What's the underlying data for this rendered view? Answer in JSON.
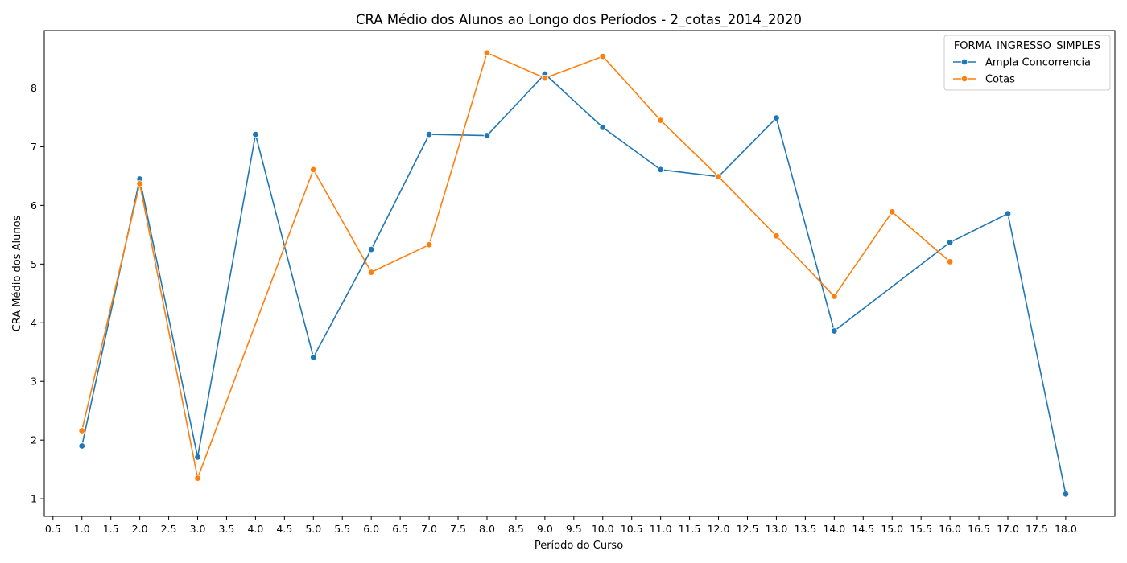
{
  "chart_data": {
    "type": "line",
    "title": "CRA Médio dos Alunos ao Longo dos Períodos - 2_cotas_2014_2020",
    "xlabel": "Período do Curso",
    "ylabel": "CRA Médio dos Alunos",
    "xlim": [
      0.35,
      18.85
    ],
    "ylim": [
      0.7,
      8.98
    ],
    "xticks": [
      0.5,
      1.0,
      1.5,
      2.0,
      2.5,
      3.0,
      3.5,
      4.0,
      4.5,
      5.0,
      5.5,
      6.0,
      6.5,
      7.0,
      7.5,
      8.0,
      8.5,
      9.0,
      9.5,
      10.0,
      10.5,
      11.0,
      11.5,
      12.0,
      12.5,
      13.0,
      13.5,
      14.0,
      14.5,
      15.0,
      15.5,
      16.0,
      16.5,
      17.0,
      17.5,
      18.0
    ],
    "xtick_labels": [
      "0.5",
      "1.0",
      "1.5",
      "2.0",
      "2.5",
      "3.0",
      "3.5",
      "4.0",
      "4.5",
      "5.0",
      "5.5",
      "6.0",
      "6.5",
      "7.0",
      "7.5",
      "8.0",
      "8.5",
      "9.0",
      "9.5",
      "10.0",
      "10.5",
      "11.0",
      "11.5",
      "12.0",
      "12.5",
      "13.0",
      "13.5",
      "14.0",
      "14.5",
      "15.0",
      "15.5",
      "16.0",
      "16.5",
      "17.0",
      "17.5",
      "18.0"
    ],
    "yticks": [
      1,
      2,
      3,
      4,
      5,
      6,
      7,
      8
    ],
    "ytick_labels": [
      "1",
      "2",
      "3",
      "4",
      "5",
      "6",
      "7",
      "8"
    ],
    "grid": false,
    "legend": {
      "title": "FORMA_INGRESSO_SIMPLES",
      "position": "top-right"
    },
    "series": [
      {
        "name": "Ampla Concorrencia",
        "color": "#1f77b4",
        "x": [
          1,
          2,
          3,
          4,
          5,
          6,
          7,
          8,
          9,
          10,
          11,
          12,
          13,
          14,
          16,
          17,
          18
        ],
        "y": [
          1.9,
          6.45,
          1.71,
          7.21,
          3.41,
          5.25,
          7.21,
          7.19,
          8.24,
          7.33,
          6.61,
          6.49,
          7.49,
          3.86,
          5.37,
          5.86,
          1.08
        ]
      },
      {
        "name": "Cotas",
        "color": "#ff7f0e",
        "x": [
          1,
          2,
          3,
          5,
          6,
          7,
          8,
          9,
          10,
          11,
          12,
          13,
          14,
          15,
          16
        ],
        "y": [
          2.16,
          6.37,
          1.35,
          6.61,
          4.86,
          5.33,
          8.6,
          8.17,
          8.54,
          7.45,
          6.49,
          5.48,
          4.45,
          5.89,
          5.04
        ]
      }
    ]
  }
}
